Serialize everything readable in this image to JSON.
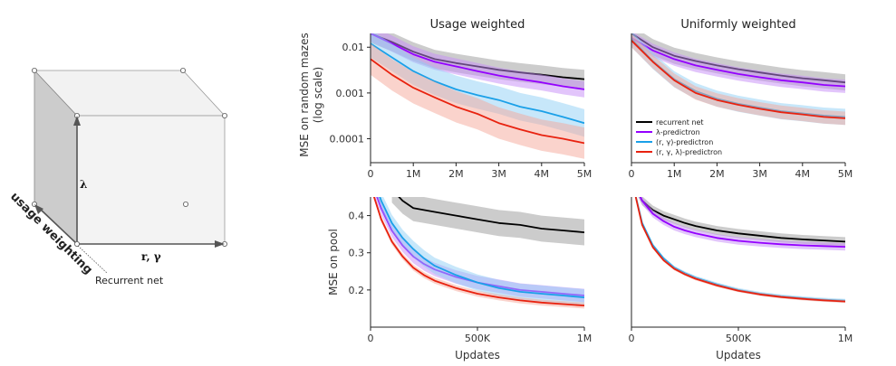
{
  "cube": {
    "lambda_label": "λ",
    "rgamma_label": "r, γ",
    "usage_label": "usage weighting",
    "recurrent_label": "Recurrent net"
  },
  "columns": [
    "Usage weighted",
    "Uniformly weighted"
  ],
  "legend": [
    "recurrent net",
    "λ-predictron",
    "(r, γ)-predictron",
    "(r, γ, λ)-predictron"
  ],
  "colors": {
    "recurrent": "#000000",
    "lambda": "#9400ff",
    "rgamma": "#1aa0e8",
    "rgammalambda": "#e8220f",
    "recurrent_band": "#999999",
    "lambda_band": "#c58cf7",
    "rgamma_band": "#8fd0f5",
    "rgammalambda_band": "#f5a79a"
  },
  "chart_data": [
    {
      "type": "line",
      "title": "Usage weighted",
      "xlabel": "",
      "ylabel": "MSE on random mazes (log scale)",
      "ylabel_lines": [
        "MSE on random mazes",
        "(log scale)"
      ],
      "yscale": "log",
      "xlim": [
        0,
        5
      ],
      "ylim": [
        3e-05,
        0.02
      ],
      "x_ticks": [
        0,
        1,
        2,
        3,
        4,
        5
      ],
      "x_tick_labels": [
        "0",
        "1M",
        "2M",
        "3M",
        "4M",
        "5M"
      ],
      "y_ticks": [
        0.0001,
        0.001,
        0.01
      ],
      "y_tick_labels": [
        "0.0001",
        "0.001",
        "0.01"
      ],
      "x": [
        0,
        0.5,
        1,
        1.5,
        2,
        2.5,
        3,
        3.5,
        4,
        4.5,
        5
      ],
      "series": [
        {
          "name": "recurrent net",
          "values": [
            0.02,
            0.013,
            0.008,
            0.0055,
            0.0045,
            0.0038,
            0.0032,
            0.0028,
            0.0025,
            0.0022,
            0.002
          ],
          "band": 1.6
        },
        {
          "name": "λ-predictron",
          "values": [
            0.02,
            0.012,
            0.007,
            0.0048,
            0.0038,
            0.003,
            0.0024,
            0.002,
            0.0017,
            0.0014,
            0.0012
          ],
          "band": 1.5
        },
        {
          "name": "(r, γ)-predictron",
          "values": [
            0.012,
            0.006,
            0.003,
            0.0018,
            0.0012,
            0.0009,
            0.0007,
            0.0005,
            0.0004,
            0.0003,
            0.00022
          ],
          "band": 2.0
        },
        {
          "name": "(r, γ, λ)-predictron",
          "values": [
            0.0055,
            0.0025,
            0.0013,
            0.0008,
            0.0005,
            0.00035,
            0.00022,
            0.00016,
            0.00012,
            0.0001,
            8e-05
          ],
          "band": 2.2
        }
      ]
    },
    {
      "type": "line",
      "title": "Uniformly weighted",
      "xlabel": "",
      "ylabel": "",
      "yscale": "log",
      "xlim": [
        0,
        5
      ],
      "ylim": [
        3e-05,
        0.02
      ],
      "x_ticks": [
        0,
        1,
        2,
        3,
        4,
        5
      ],
      "x_tick_labels": [
        "0",
        "1M",
        "2M",
        "3M",
        "4M",
        "5M"
      ],
      "y_ticks": [],
      "y_tick_labels": [],
      "legend_position": "bottom-left",
      "x": [
        0,
        0.5,
        1,
        1.5,
        2,
        2.5,
        3,
        3.5,
        4,
        4.5,
        5
      ],
      "series": [
        {
          "name": "recurrent net",
          "values": [
            0.02,
            0.01,
            0.0065,
            0.005,
            0.004,
            0.0033,
            0.0028,
            0.0024,
            0.0021,
            0.0019,
            0.0017
          ],
          "band": 1.5
        },
        {
          "name": "λ-predictron",
          "values": [
            0.016,
            0.0085,
            0.0055,
            0.004,
            0.0032,
            0.0026,
            0.0022,
            0.0019,
            0.0017,
            0.0015,
            0.0014
          ],
          "band": 1.4
        },
        {
          "name": "(r, γ)-predictron",
          "values": [
            0.015,
            0.005,
            0.002,
            0.0011,
            0.00075,
            0.00058,
            0.00048,
            0.0004,
            0.00036,
            0.00032,
            0.0003
          ],
          "band": 1.5
        },
        {
          "name": "(r, γ, λ)-predictron",
          "values": [
            0.014,
            0.0048,
            0.0019,
            0.001,
            0.0007,
            0.00055,
            0.00045,
            0.00038,
            0.00034,
            0.0003,
            0.00028
          ],
          "band": 1.4
        }
      ]
    },
    {
      "type": "line",
      "title": "",
      "xlabel": "Updates",
      "ylabel": "MSE on pool",
      "yscale": "linear",
      "xlim": [
        0,
        1
      ],
      "ylim": [
        0.1,
        0.45
      ],
      "x_ticks": [
        0,
        0.5,
        1
      ],
      "x_tick_labels": [
        "0",
        "500K",
        "1M"
      ],
      "y_ticks": [
        0.2,
        0.3,
        0.4
      ],
      "y_tick_labels": [
        "0.2",
        "0.3",
        "0.4"
      ],
      "x": [
        0,
        0.05,
        0.1,
        0.15,
        0.2,
        0.25,
        0.3,
        0.4,
        0.5,
        0.6,
        0.7,
        0.8,
        0.9,
        1.0
      ],
      "series": [
        {
          "name": "recurrent net",
          "values": [
            null,
            null,
            0.47,
            0.44,
            0.42,
            0.415,
            0.41,
            0.4,
            0.39,
            0.38,
            0.375,
            0.365,
            0.36,
            0.355
          ],
          "band": 0.035
        },
        {
          "name": "λ-predictron",
          "values": [
            0.5,
            0.42,
            0.36,
            0.32,
            0.29,
            0.27,
            0.255,
            0.235,
            0.22,
            0.21,
            0.2,
            0.195,
            0.19,
            0.185
          ],
          "band": 0.018
        },
        {
          "name": "(r, γ)-predictron",
          "values": [
            0.52,
            0.44,
            0.38,
            0.34,
            0.31,
            0.285,
            0.265,
            0.24,
            0.22,
            0.205,
            0.195,
            0.19,
            0.185,
            0.18
          ],
          "band": 0.022
        },
        {
          "name": "(r, γ, λ)-predictron",
          "values": [
            0.48,
            0.39,
            0.33,
            0.29,
            0.26,
            0.24,
            0.225,
            0.205,
            0.19,
            0.18,
            0.172,
            0.166,
            0.162,
            0.158
          ],
          "band": 0.008
        }
      ]
    },
    {
      "type": "line",
      "title": "",
      "xlabel": "Updates",
      "ylabel": "",
      "yscale": "linear",
      "xlim": [
        0,
        1
      ],
      "ylim": [
        0.1,
        0.45
      ],
      "x_ticks": [
        0,
        0.5,
        1
      ],
      "x_tick_labels": [
        "0",
        "500K",
        "1M"
      ],
      "y_ticks": [],
      "y_tick_labels": [],
      "x": [
        0,
        0.05,
        0.1,
        0.15,
        0.2,
        0.25,
        0.3,
        0.4,
        0.5,
        0.6,
        0.7,
        0.8,
        0.9,
        1.0
      ],
      "series": [
        {
          "name": "recurrent net",
          "values": [
            0.5,
            0.44,
            0.415,
            0.4,
            0.39,
            0.38,
            0.372,
            0.36,
            0.352,
            0.346,
            0.34,
            0.336,
            0.333,
            0.33
          ],
          "band": 0.012
        },
        {
          "name": "λ-predictron",
          "values": [
            0.5,
            0.44,
            0.405,
            0.385,
            0.37,
            0.36,
            0.352,
            0.34,
            0.332,
            0.327,
            0.323,
            0.32,
            0.318,
            0.316
          ],
          "band": 0.01
        },
        {
          "name": "(r, γ)-predictron",
          "values": [
            0.5,
            0.38,
            0.32,
            0.285,
            0.26,
            0.245,
            0.233,
            0.215,
            0.2,
            0.19,
            0.183,
            0.178,
            0.174,
            0.171
          ],
          "band": 0.005
        },
        {
          "name": "(r, γ, λ)-predictron",
          "values": [
            0.5,
            0.375,
            0.315,
            0.28,
            0.257,
            0.242,
            0.23,
            0.212,
            0.198,
            0.188,
            0.181,
            0.176,
            0.172,
            0.169
          ],
          "band": 0.004
        }
      ]
    }
  ]
}
